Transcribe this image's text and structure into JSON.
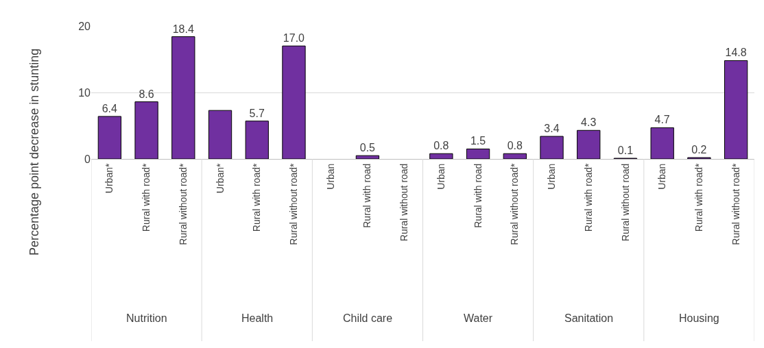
{
  "chart_data": {
    "type": "bar",
    "ylabel": "Percentage point decrease in stunting",
    "categories": [
      "Urban*",
      "Rural with road*",
      "Rural without road*",
      "Urban*",
      "Rural with road*",
      "Rural without road*",
      "Urban",
      "Rural with road",
      "Rural without road",
      "Urban",
      "Rural with road",
      "Rural without road*",
      "Urban",
      "Rural with road*",
      "Rural without road",
      "Urban",
      "Rural with road*",
      "Rural without road*"
    ],
    "values": [
      6.4,
      8.6,
      18.4,
      7.3,
      5.7,
      17.0,
      null,
      0.5,
      null,
      0.8,
      1.5,
      0.8,
      3.4,
      4.3,
      0.1,
      4.7,
      0.2,
      14.8
    ],
    "value_labels": [
      "6.4",
      "8.6",
      "18.4",
      null,
      "5.7",
      "17.0",
      null,
      "0.5",
      null,
      "0.8",
      "1.5",
      "0.8",
      "3.4",
      "4.3",
      "0.1",
      "4.7",
      "0.2",
      "14.8"
    ],
    "color": "#7030a0",
    "annotations": [
      "Nutrition",
      "Health",
      "Child care",
      "Water",
      "Sanitation",
      "Housing"
    ],
    "ylim": [
      0,
      20
    ],
    "yticks": [
      0,
      10,
      20
    ],
    "grid": "y",
    "legend": false
  }
}
